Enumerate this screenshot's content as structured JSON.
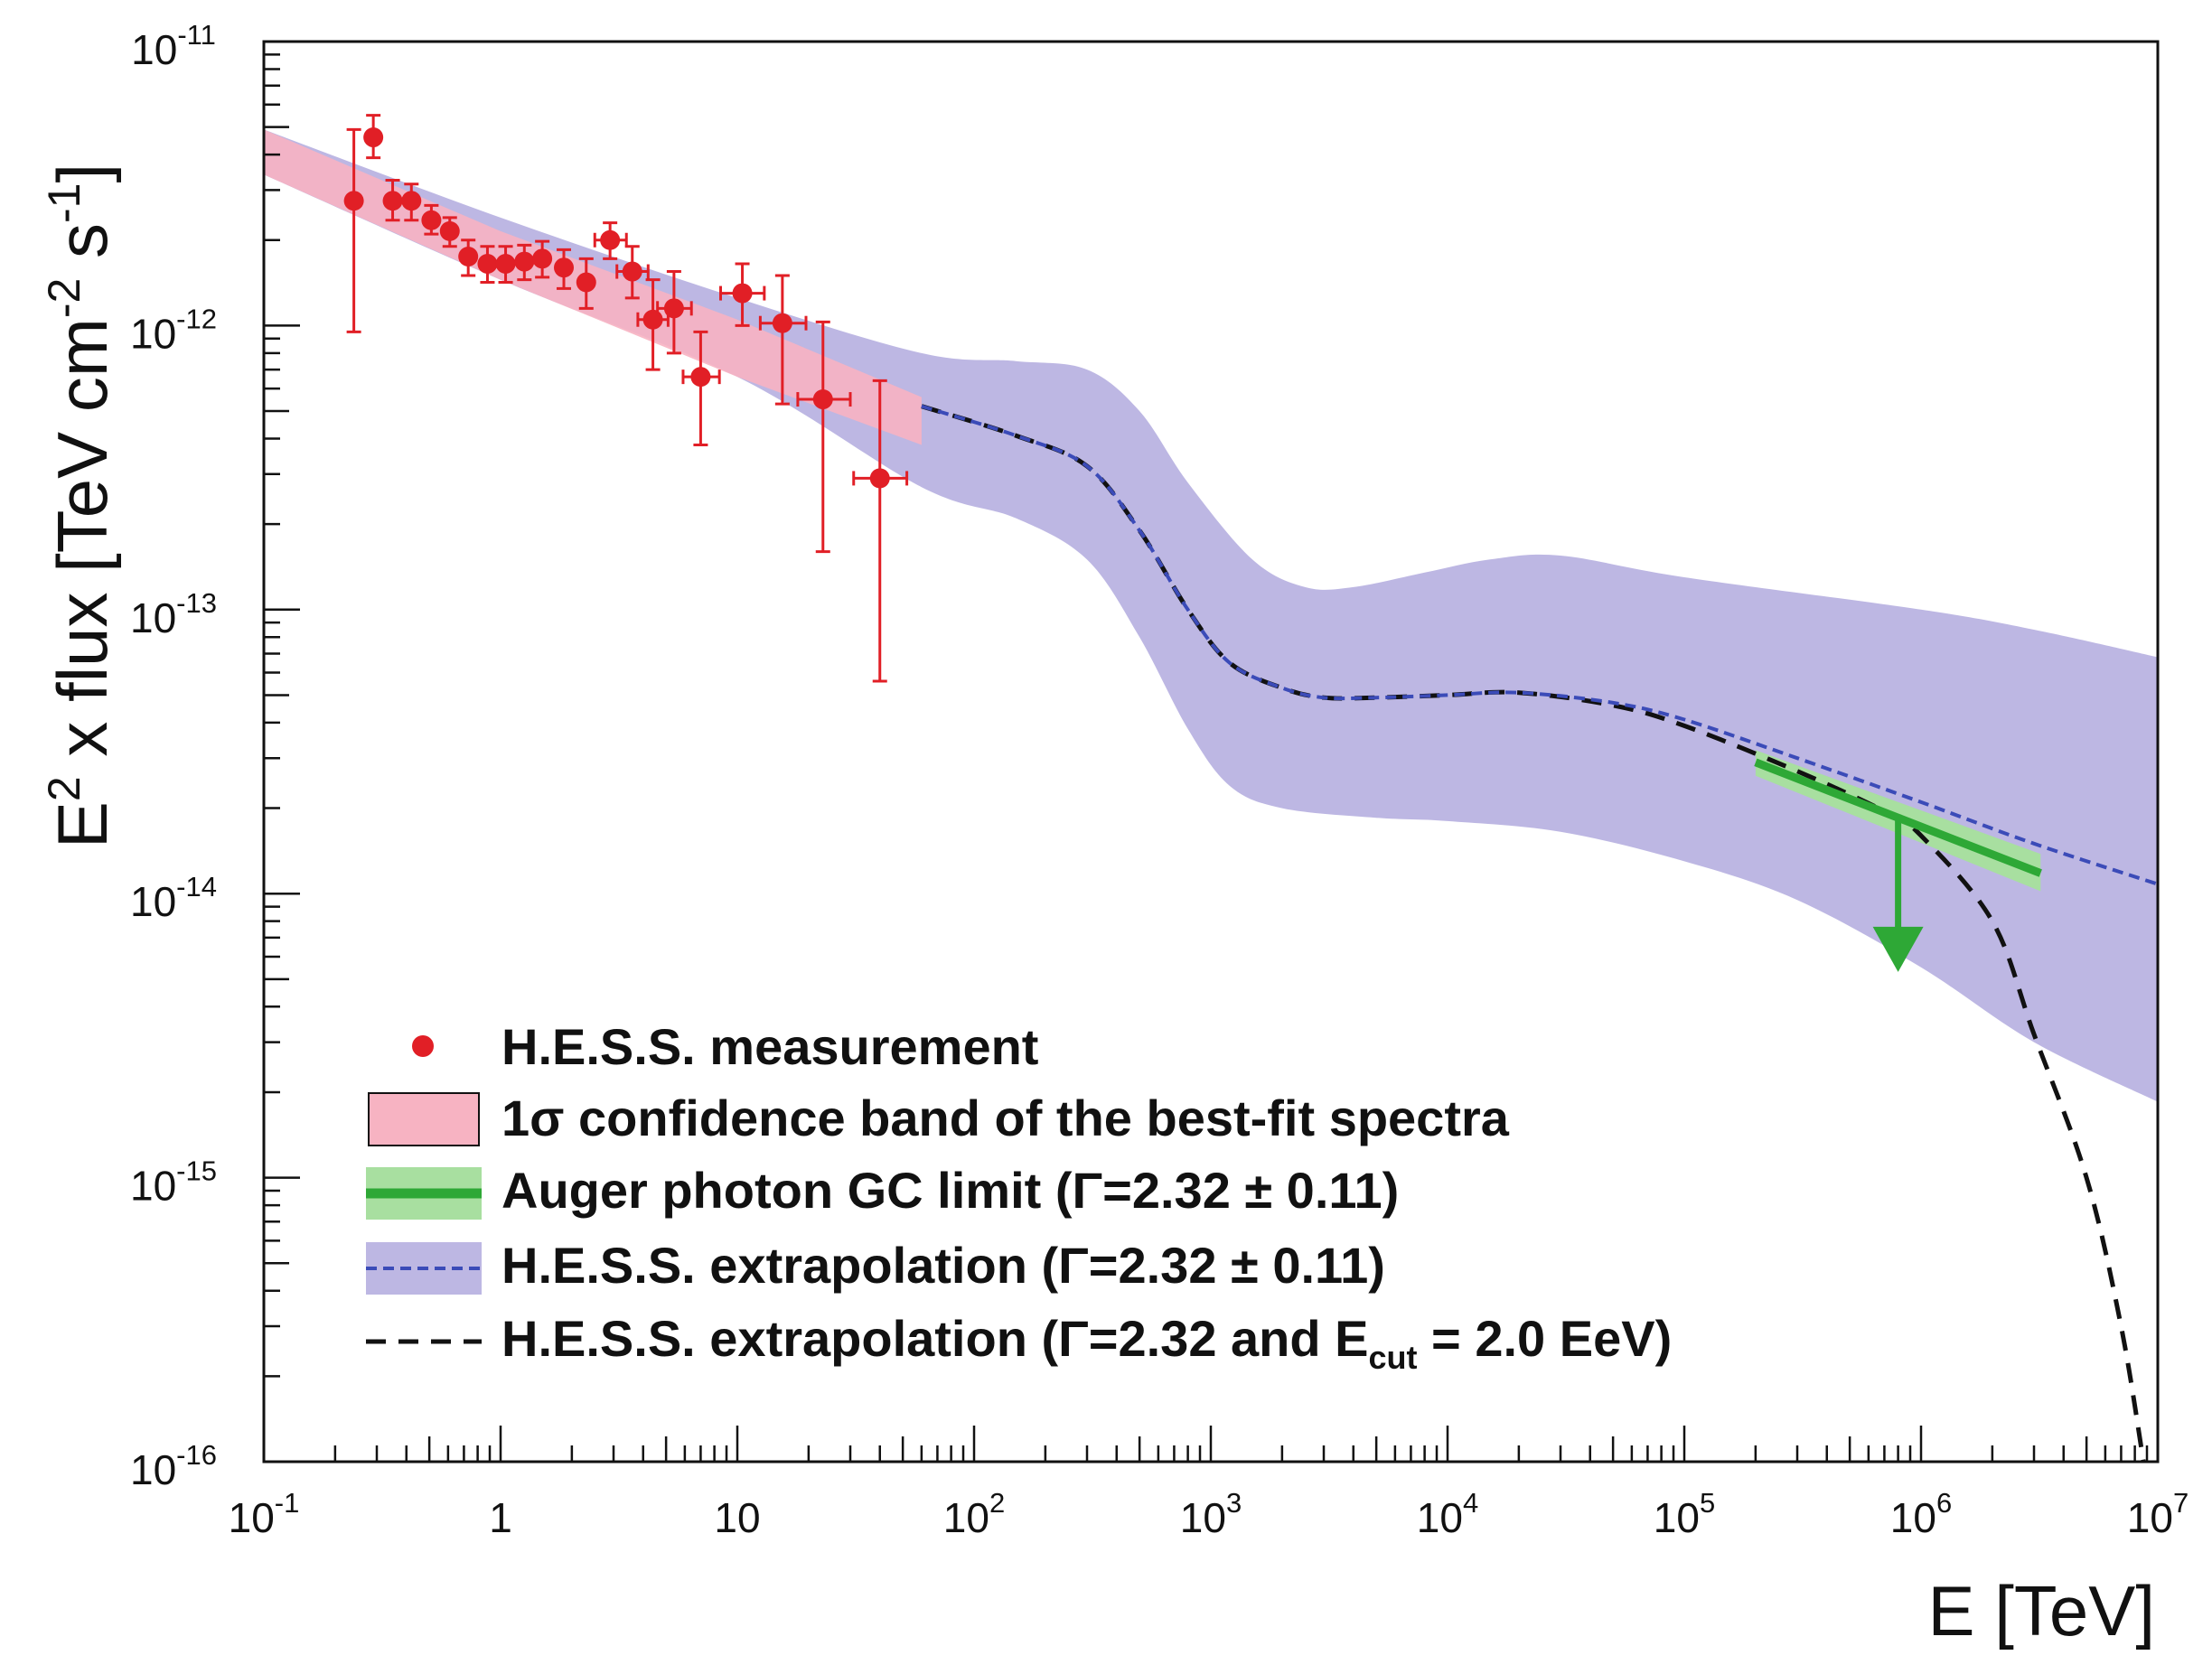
{
  "chart_data": {
    "type": "scatter",
    "x_scale": "log",
    "y_scale": "log",
    "xlim": [
      0.1,
      10000000
    ],
    "ylim": [
      1e-16,
      1e-11
    ],
    "grid": false,
    "legend_position": "bottom-left",
    "xlabel": "E [TeV]",
    "ylabel": {
      "prefix": "E",
      "prefix_sup": "2",
      "middle": " x flux [TeV cm",
      "middle_sup": "-2",
      "tail": " s",
      "tail_sup": "-1",
      "close": "]"
    },
    "x_ticks": [
      {
        "base": "10",
        "exp": "-1",
        "value": 0.1
      },
      {
        "base": "1",
        "exp": "",
        "value": 1
      },
      {
        "base": "10",
        "exp": "",
        "value": 10
      },
      {
        "base": "10",
        "exp": "2",
        "value": 100
      },
      {
        "base": "10",
        "exp": "3",
        "value": 1000
      },
      {
        "base": "10",
        "exp": "4",
        "value": 10000
      },
      {
        "base": "10",
        "exp": "5",
        "value": 100000
      },
      {
        "base": "10",
        "exp": "6",
        "value": 1000000
      },
      {
        "base": "10",
        "exp": "7",
        "value": 10000000
      }
    ],
    "y_ticks": [
      {
        "base": "10",
        "exp": "-11",
        "value": 1e-11
      },
      {
        "base": "10",
        "exp": "-12",
        "value": 1e-12
      },
      {
        "base": "10",
        "exp": "-13",
        "value": 1e-13
      },
      {
        "base": "10",
        "exp": "-14",
        "value": 1e-14
      },
      {
        "base": "10",
        "exp": "-15",
        "value": 1e-15
      },
      {
        "base": "10",
        "exp": "-16",
        "value": 1e-16
      }
    ],
    "colors": {
      "hess_points": "#e11f26",
      "hess_band": "#f7b3c2",
      "auger_line": "#2ea836",
      "auger_band": "#a8dfa0",
      "extrapolation_band": "#bdb7e3",
      "extrapolation_line": "#3b4bb8",
      "cutoff_line": "#111111",
      "axis": "#111111"
    },
    "series": [
      {
        "name": "H.E.S.S. measurement",
        "kind": "points",
        "points": [
          {
            "x": 0.24,
            "y": 2.75e-12,
            "ylo": 9.5e-13,
            "yhi": 4.9e-12
          },
          {
            "x": 0.29,
            "y": 4.6e-12,
            "ylo": 3.9e-12,
            "yhi": 5.5e-12
          },
          {
            "x": 0.35,
            "y": 2.75e-12,
            "ylo": 2.35e-12,
            "yhi": 3.25e-12
          },
          {
            "x": 0.42,
            "y": 2.75e-12,
            "ylo": 2.35e-12,
            "yhi": 3.15e-12
          },
          {
            "x": 0.51,
            "y": 2.35e-12,
            "ylo": 2.1e-12,
            "yhi": 2.65e-12
          },
          {
            "x": 0.61,
            "y": 2.15e-12,
            "ylo": 1.9e-12,
            "yhi": 2.4e-12
          },
          {
            "x": 0.73,
            "y": 1.75e-12,
            "ylo": 1.5e-12,
            "yhi": 2e-12
          },
          {
            "x": 0.88,
            "y": 1.65e-12,
            "ylo": 1.42e-12,
            "yhi": 1.9e-12
          },
          {
            "x": 1.05,
            "y": 1.65e-12,
            "ylo": 1.42e-12,
            "yhi": 1.9e-12
          },
          {
            "x": 1.26,
            "y": 1.68e-12,
            "ylo": 1.45e-12,
            "yhi": 1.92e-12
          },
          {
            "x": 1.5,
            "y": 1.72e-12,
            "ylo": 1.48e-12,
            "yhi": 1.98e-12
          },
          {
            "x": 1.85,
            "y": 1.6e-12,
            "ylo": 1.35e-12,
            "yhi": 1.85e-12
          },
          {
            "x": 2.3,
            "y": 1.42e-12,
            "ylo": 1.15e-12,
            "yhi": 1.72e-12
          },
          {
            "x": 2.9,
            "y": 2e-12,
            "ylo": 1.72e-12,
            "yhi": 2.3e-12
          },
          {
            "x": 3.6,
            "y": 1.55e-12,
            "ylo": 1.25e-12,
            "yhi": 1.9e-12
          },
          {
            "x": 4.4,
            "y": 1.05e-12,
            "ylo": 7e-13,
            "yhi": 1.45e-12
          },
          {
            "x": 5.4,
            "y": 1.15e-12,
            "ylo": 8e-13,
            "yhi": 1.55e-12
          },
          {
            "x": 7.0,
            "y": 6.6e-13,
            "ylo": 3.8e-13,
            "yhi": 9.5e-13
          },
          {
            "x": 10.5,
            "y": 1.3e-12,
            "ylo": 1e-12,
            "yhi": 1.65e-12
          },
          {
            "x": 15.5,
            "y": 1.02e-12,
            "ylo": 5.3e-13,
            "yhi": 1.5e-12
          },
          {
            "x": 23.0,
            "y": 5.5e-13,
            "ylo": 1.6e-13,
            "yhi": 1.03e-12
          },
          {
            "x": 40.0,
            "y": 2.9e-13,
            "ylo": 5.6e-14,
            "yhi": 6.4e-13
          }
        ],
        "x_errors": [
          {
            "i": 13,
            "xlo": 2.5,
            "xhi": 3.4
          },
          {
            "i": 14,
            "xlo": 3.1,
            "xhi": 4.2
          },
          {
            "i": 15,
            "xlo": 3.8,
            "xhi": 5.1
          },
          {
            "i": 16,
            "xlo": 4.6,
            "xhi": 6.4
          },
          {
            "i": 17,
            "xlo": 5.9,
            "xhi": 8.4
          },
          {
            "i": 18,
            "xlo": 8.5,
            "xhi": 13.0
          },
          {
            "i": 19,
            "xlo": 12.5,
            "xhi": 19.5
          },
          {
            "i": 20,
            "xlo": 18.0,
            "xhi": 30.0
          },
          {
            "i": 21,
            "xlo": 31.0,
            "xhi": 52.0
          }
        ]
      },
      {
        "name": "1σ confidence band of the best-fit spectra",
        "kind": "band",
        "upper": [
          [
            0.1,
            4.9e-12
          ],
          [
            1,
            2.15e-12
          ],
          [
            10,
            1.05e-12
          ],
          [
            60,
            5.6e-13
          ]
        ],
        "lower": [
          [
            0.1,
            3.4e-12
          ],
          [
            1,
            1.45e-12
          ],
          [
            10,
            6.6e-13
          ],
          [
            60,
            3.8e-13
          ]
        ]
      },
      {
        "name": "Auger photon GC limit (Γ=2.32 ± 0.11)",
        "kind": "line+band",
        "line": [
          [
            200000,
            2.9e-14
          ],
          [
            3200000,
            1.18e-14
          ]
        ],
        "band_upper": [
          [
            200000,
            3.2e-14
          ],
          [
            3200000,
            1.38e-14
          ]
        ],
        "band_lower": [
          [
            200000,
            2.6e-14
          ],
          [
            3200000,
            1.02e-14
          ]
        ],
        "arrow": {
          "x": 800000,
          "from": 1.9e-14,
          "to": 5.3e-15
        }
      },
      {
        "name": "H.E.S.S. extrapolation (Γ=2.32 ± 0.11)",
        "kind": "line+band",
        "line": [
          [
            60,
            5.2e-13
          ],
          [
            150,
            4.1e-13
          ],
          [
            300,
            3.2e-13
          ],
          [
            500,
            1.9e-13
          ],
          [
            800,
            1e-13
          ],
          [
            1200,
            6.5e-14
          ],
          [
            2000,
            5.3e-14
          ],
          [
            3000,
            4.9e-14
          ],
          [
            5000,
            4.9e-14
          ],
          [
            10000,
            5e-14
          ],
          [
            20000,
            5.1e-14
          ],
          [
            50000,
            4.7e-14
          ],
          [
            100000,
            4.1e-14
          ],
          [
            300000,
            3e-14
          ],
          [
            1000000,
            2.1e-14
          ],
          [
            3000000,
            1.5e-14
          ],
          [
            10000000,
            1.08e-14
          ]
        ],
        "band_upper": [
          [
            0.1,
            4.9e-12
          ],
          [
            1,
            2.4e-12
          ],
          [
            10,
            1.25e-12
          ],
          [
            60,
            8e-13
          ],
          [
            150,
            7.5e-13
          ],
          [
            300,
            7e-13
          ],
          [
            500,
            5e-13
          ],
          [
            800,
            2.8e-13
          ],
          [
            1500,
            1.5e-13
          ],
          [
            2500,
            1.2e-13
          ],
          [
            4000,
            1.2e-13
          ],
          [
            8000,
            1.35e-13
          ],
          [
            15000,
            1.5e-13
          ],
          [
            30000,
            1.55e-13
          ],
          [
            100000,
            1.3e-13
          ],
          [
            1000000,
            1e-13
          ],
          [
            3000000,
            8.5e-14
          ],
          [
            10000000,
            6.8e-14
          ]
        ],
        "band_lower": [
          [
            10000000,
            1.85e-15
          ],
          [
            3000000,
            3e-15
          ],
          [
            1000000,
            5.5e-15
          ],
          [
            300000,
            9.5e-15
          ],
          [
            100000,
            1.3e-14
          ],
          [
            30000,
            1.65e-14
          ],
          [
            10000,
            1.8e-14
          ],
          [
            5000,
            1.85e-14
          ],
          [
            2000,
            2e-14
          ],
          [
            1200,
            2.4e-14
          ],
          [
            800,
            3.8e-14
          ],
          [
            500,
            8e-14
          ],
          [
            300,
            1.5e-13
          ],
          [
            150,
            2.1e-13
          ],
          [
            60,
            2.7e-13
          ],
          [
            10,
            6.6e-13
          ],
          [
            1,
            1.45e-12
          ],
          [
            0.1,
            3.4e-12
          ]
        ]
      },
      {
        "name": "H.E.S.S. extrapolation (Γ=2.32 and Ecut = 2.0 EeV)",
        "kind": "line",
        "line": [
          [
            60,
            5.2e-13
          ],
          [
            150,
            4.1e-13
          ],
          [
            300,
            3.2e-13
          ],
          [
            500,
            1.9e-13
          ],
          [
            800,
            1e-13
          ],
          [
            1200,
            6.5e-14
          ],
          [
            2000,
            5.3e-14
          ],
          [
            3000,
            4.9e-14
          ],
          [
            5000,
            4.9e-14
          ],
          [
            10000,
            5e-14
          ],
          [
            20000,
            5.1e-14
          ],
          [
            50000,
            4.6e-14
          ],
          [
            100000,
            3.9e-14
          ],
          [
            300000,
            2.7e-14
          ],
          [
            700000,
            1.95e-14
          ],
          [
            1000000,
            1.6e-14
          ],
          [
            2000000,
            8e-15
          ],
          [
            3000000,
            3.2e-15
          ],
          [
            5000000,
            1e-15
          ],
          [
            7000000,
            3e-16
          ],
          [
            8700000,
            1e-16
          ]
        ]
      }
    ],
    "legend": [
      {
        "key": "points",
        "label": "H.E.S.S. measurement"
      },
      {
        "key": "band",
        "label_pre": "1σ confidence band of the best-fit spectra"
      },
      {
        "key": "auger",
        "label": "Auger photon GC limit (Γ=2.32 ± 0.11)"
      },
      {
        "key": "extrap",
        "label": "H.E.S.S. extrapolation (Γ=2.32 ± 0.11)"
      },
      {
        "key": "cutoff",
        "label_a": "H.E.S.S. extrapolation (Γ=2.32 and E",
        "label_sub": "cut",
        "label_b": " = 2.0 EeV)"
      }
    ]
  }
}
